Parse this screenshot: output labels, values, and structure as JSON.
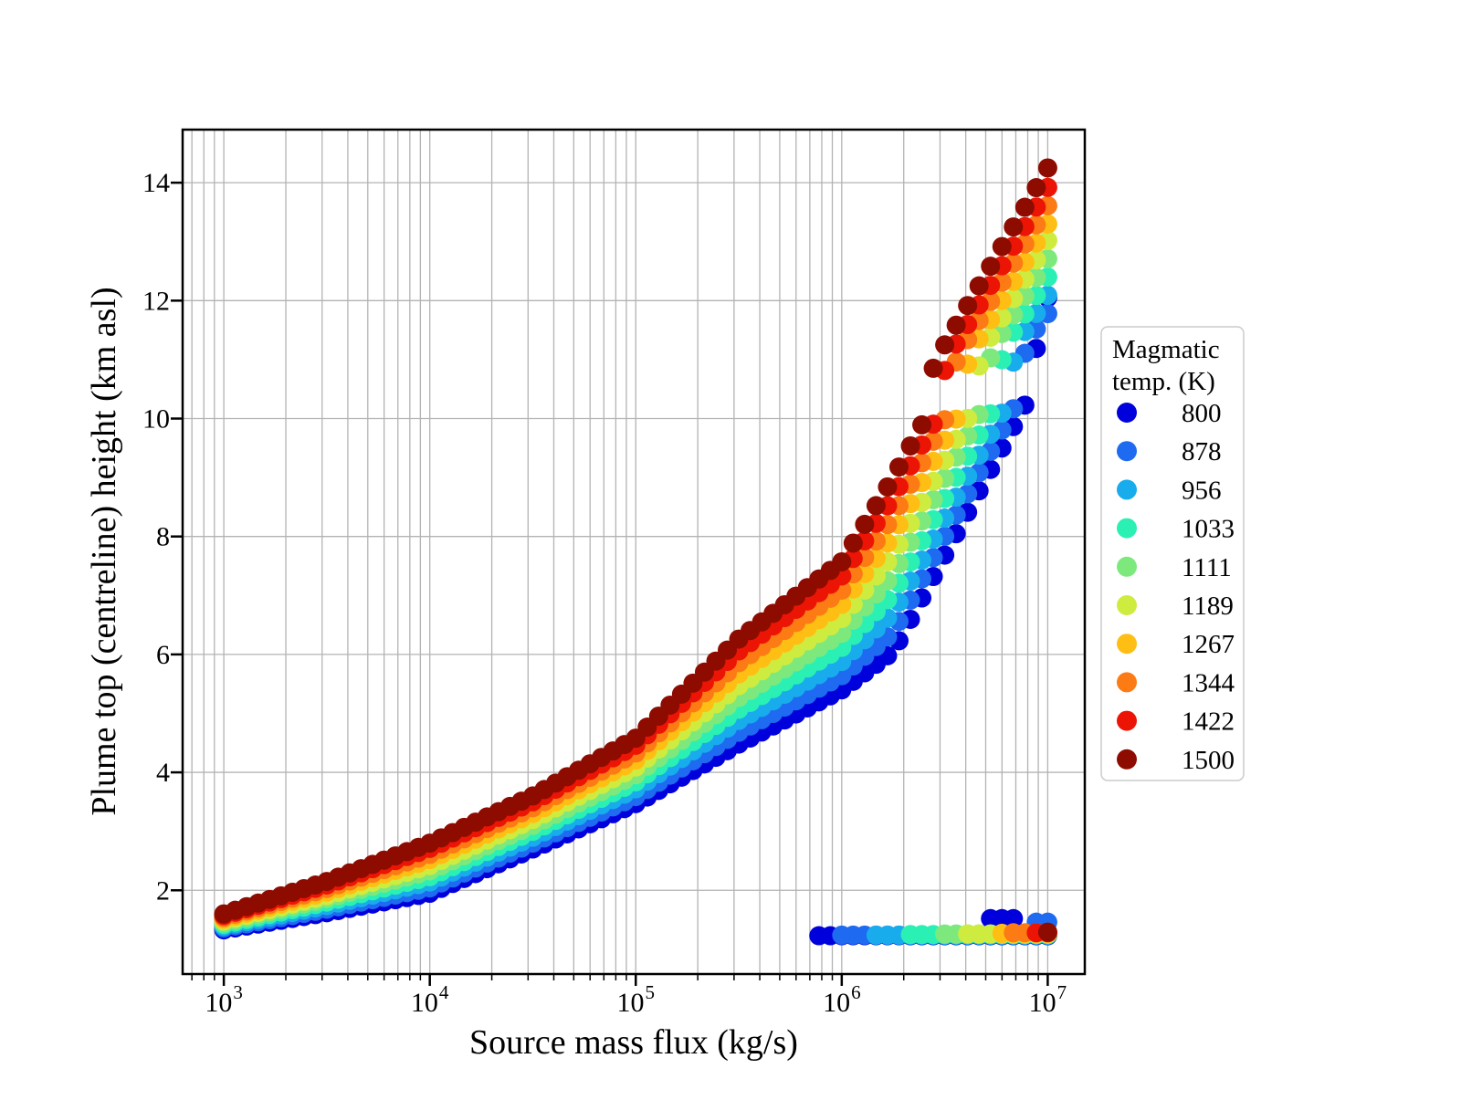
{
  "chart_data": {
    "type": "scatter",
    "title": "",
    "xlabel": "Source mass flux (kg/s)",
    "ylabel": "Plume top (centreline) height (km asl)",
    "x_scale": "log10",
    "xlim_log10": [
      2.8,
      7.18
    ],
    "ylim": [
      0.58,
      14.9
    ],
    "x_major_tick_base": "10",
    "x_major_tick_exponents": [
      3,
      4,
      5,
      6,
      7
    ],
    "y_ticks": [
      2,
      4,
      6,
      8,
      10,
      12,
      14
    ],
    "grid": {
      "color": "#b3b3b3",
      "x_minor": true,
      "y_minor": false,
      "on": true
    },
    "marker_diameter_px": 21,
    "points_per_decade": 18,
    "legend": {
      "title_lines": [
        "Magmatic",
        "temp. (K)"
      ],
      "position": "right-outside",
      "entries": [
        {
          "label": "800",
          "color": "#0000DC"
        },
        {
          "label": "878",
          "color": "#1E6AF0"
        },
        {
          "label": "956",
          "color": "#18ACEC"
        },
        {
          "label": "1033",
          "color": "#2BF0B4"
        },
        {
          "label": "1111",
          "color": "#7DE97D"
        },
        {
          "label": "1189",
          "color": "#CEEC3F"
        },
        {
          "label": "1267",
          "color": "#FFBE14"
        },
        {
          "label": "1344",
          "color": "#FC7B14"
        },
        {
          "label": "1422",
          "color": "#EC1505"
        },
        {
          "label": "1500",
          "color": "#8E0B00"
        }
      ]
    },
    "series": [
      {
        "temp": 800,
        "color": "#0000DC",
        "rising_anchors": {
          "log_flux": [
            3,
            3.5,
            4,
            4.5,
            5,
            5.5,
            6,
            6.25,
            6.9,
            6.96,
            7.0
          ],
          "height_km": [
            1.33,
            1.62,
            1.95,
            2.7,
            3.47,
            4.48,
            5.4,
            6.05,
            10.3,
            11.5,
            12.05
          ]
        },
        "collapsed": {
          "start_log_flux": 5.87,
          "end_log_flux": 7.0,
          "height_km": 1.23
        },
        "upper_flat": {
          "start_log_flux": 6.7,
          "end_log_flux": 6.86,
          "height_km": 1.52
        }
      },
      {
        "temp": 878,
        "color": "#1E6AF0",
        "rising_anchors": {
          "log_flux": [
            3,
            3.5,
            4,
            4.5,
            5,
            5.5,
            6,
            6.25,
            6.84,
            6.9,
            7.0
          ],
          "height_km": [
            1.36,
            1.68,
            2.04,
            2.8,
            3.59,
            4.68,
            5.64,
            6.38,
            10.21,
            11.31,
            11.78
          ]
        },
        "collapsed": {
          "start_log_flux": 5.98,
          "end_log_flux": 7.0,
          "height_km": 1.24
        },
        "upper_flat": {
          "start_log_flux": 6.89,
          "end_log_flux": 7.0,
          "height_km": 1.46
        }
      },
      {
        "temp": 956,
        "color": "#18ACEC",
        "rising_anchors": {
          "log_flux": [
            3,
            3.5,
            4,
            4.5,
            5,
            5.5,
            6,
            6.25,
            6.79,
            6.85,
            7.0
          ],
          "height_km": [
            1.39,
            1.74,
            2.14,
            2.9,
            3.72,
            4.88,
            5.88,
            6.71,
            10.17,
            11.26,
            12.09
          ]
        },
        "collapsed": {
          "start_log_flux": 6.12,
          "end_log_flux": 7.0,
          "height_km": 1.24
        },
        "upper_flat": null
      },
      {
        "temp": 1033,
        "color": "#2BF0B4",
        "rising_anchors": {
          "log_flux": [
            3,
            3.5,
            4,
            4.5,
            5,
            5.5,
            6,
            6.25,
            6.73,
            6.79,
            7.0
          ],
          "height_km": [
            1.42,
            1.8,
            2.23,
            3.0,
            3.84,
            5.07,
            6.12,
            7.03,
            10.13,
            11.22,
            12.4
          ]
        },
        "collapsed": {
          "start_log_flux": 6.28,
          "end_log_flux": 7.0,
          "height_km": 1.25
        },
        "upper_flat": null
      },
      {
        "temp": 1111,
        "color": "#7DE97D",
        "rising_anchors": {
          "log_flux": [
            3,
            3.5,
            4,
            4.5,
            5,
            5.5,
            6,
            6.25,
            6.67,
            6.73,
            7.0
          ],
          "height_km": [
            1.45,
            1.86,
            2.33,
            3.1,
            3.96,
            5.27,
            6.36,
            7.36,
            10.09,
            11.17,
            12.71
          ]
        },
        "collapsed": {
          "start_log_flux": 6.45,
          "end_log_flux": 7.0,
          "height_km": 1.26
        },
        "upper_flat": null
      },
      {
        "temp": 1189,
        "color": "#CEEC3F",
        "rising_anchors": {
          "log_flux": [
            3,
            3.5,
            4,
            4.5,
            5,
            5.5,
            6,
            6.25,
            6.62,
            6.68,
            7.0
          ],
          "height_km": [
            1.48,
            1.91,
            2.42,
            3.2,
            4.09,
            5.47,
            6.61,
            7.69,
            10.06,
            11.13,
            13.02
          ]
        },
        "collapsed": {
          "start_log_flux": 6.6,
          "end_log_flux": 7.0,
          "height_km": 1.26
        },
        "upper_flat": null
      },
      {
        "temp": 1267,
        "color": "#FFBE14",
        "rising_anchors": {
          "log_flux": [
            3,
            3.5,
            4,
            4.5,
            5,
            5.5,
            6,
            6.25,
            6.56,
            6.62,
            7.0
          ],
          "height_km": [
            1.51,
            1.97,
            2.52,
            3.3,
            4.21,
            5.67,
            6.85,
            8.02,
            10.02,
            11.08,
            13.3
          ]
        },
        "collapsed": {
          "start_log_flux": 6.73,
          "end_log_flux": 7.0,
          "height_km": 1.27
        },
        "upper_flat": null
      },
      {
        "temp": 1344,
        "color": "#FC7B14",
        "rising_anchors": {
          "log_flux": [
            3,
            3.5,
            4,
            4.5,
            5,
            5.5,
            6,
            6.25,
            6.5,
            6.56,
            7.0
          ],
          "height_km": [
            1.54,
            2.03,
            2.61,
            3.4,
            4.33,
            5.86,
            7.09,
            8.34,
            9.98,
            11.04,
            13.61
          ]
        },
        "collapsed": {
          "start_log_flux": 6.83,
          "end_log_flux": 7.0,
          "height_km": 1.28
        },
        "upper_flat": null
      },
      {
        "temp": 1422,
        "color": "#EC1505",
        "rising_anchors": {
          "log_flux": [
            3,
            3.5,
            4,
            4.5,
            5,
            5.5,
            6,
            6.25,
            6.45,
            6.51,
            7.0
          ],
          "height_km": [
            1.57,
            2.09,
            2.71,
            3.5,
            4.46,
            6.06,
            7.33,
            8.67,
            9.94,
            10.99,
            13.92
          ]
        },
        "collapsed": {
          "start_log_flux": 6.91,
          "end_log_flux": 7.0,
          "height_km": 1.28
        },
        "upper_flat": null
      },
      {
        "temp": 1500,
        "color": "#8E0B00",
        "rising_anchors": {
          "log_flux": [
            3,
            3.5,
            4,
            4.5,
            5,
            5.5,
            6,
            6.25,
            6.39,
            6.45,
            7.0
          ],
          "height_km": [
            1.6,
            2.15,
            2.8,
            3.6,
            4.58,
            6.26,
            7.57,
            9.0,
            9.9,
            10.95,
            14.25
          ]
        },
        "collapsed": {
          "start_log_flux": 6.96,
          "end_log_flux": 7.0,
          "height_km": 1.29
        },
        "upper_flat": null
      }
    ]
  }
}
